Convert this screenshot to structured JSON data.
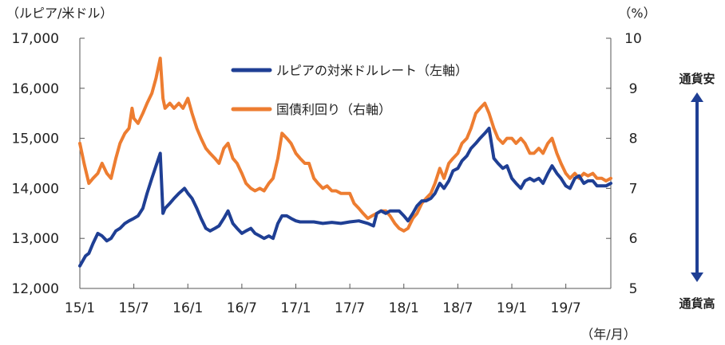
{
  "chart_data": {
    "type": "line",
    "left_axis": {
      "unit": "（ルピア/米ドル）",
      "ylim": [
        12000,
        17000
      ],
      "ticks": [
        12000,
        13000,
        14000,
        15000,
        16000,
        17000
      ],
      "tick_labels": [
        "12,000",
        "13,000",
        "14,000",
        "15,000",
        "16,000",
        "17,000"
      ]
    },
    "right_axis": {
      "unit": "（%）",
      "ylim": [
        5,
        10
      ],
      "ticks": [
        5,
        6,
        7,
        8,
        9,
        10
      ],
      "tick_labels": [
        "5",
        "6",
        "7",
        "8",
        "9",
        "10"
      ]
    },
    "x_axis": {
      "unit": "（年/月）",
      "xlim": [
        "2015-01",
        "2019-12"
      ],
      "ticks": [
        "2015-01",
        "2015-07",
        "2016-01",
        "2016-07",
        "2017-01",
        "2017-07",
        "2018-01",
        "2018-07",
        "2019-01",
        "2019-07"
      ],
      "tick_labels": [
        "15/1",
        "15/7",
        "16/1",
        "16/7",
        "17/1",
        "17/7",
        "18/1",
        "18/7",
        "19/1",
        "19/7"
      ]
    },
    "grid": false,
    "legend_position": "top-center",
    "series": [
      {
        "name": "ルピアの対米ドルレート（左軸）",
        "axis": "left",
        "color": "#1f3f94",
        "points": [
          [
            "2015-01",
            12450
          ],
          [
            "2015-01-20",
            12650
          ],
          [
            "2015-02",
            12700
          ],
          [
            "2015-02-15",
            12900
          ],
          [
            "2015-03",
            13100
          ],
          [
            "2015-03-15",
            13050
          ],
          [
            "2015-04",
            12950
          ],
          [
            "2015-04-15",
            13000
          ],
          [
            "2015-05",
            13150
          ],
          [
            "2015-05-15",
            13200
          ],
          [
            "2015-06",
            13300
          ],
          [
            "2015-06-15",
            13350
          ],
          [
            "2015-07",
            13400
          ],
          [
            "2015-07-15",
            13450
          ],
          [
            "2015-08",
            13600
          ],
          [
            "2015-08-15",
            13900
          ],
          [
            "2015-09",
            14200
          ],
          [
            "2015-09-15",
            14450
          ],
          [
            "2015-09-29",
            14700
          ],
          [
            "2015-10-08",
            13500
          ],
          [
            "2015-10-15",
            13600
          ],
          [
            "2015-11",
            13700
          ],
          [
            "2015-11-15",
            13800
          ],
          [
            "2015-12",
            13900
          ],
          [
            "2015-12-20",
            14000
          ],
          [
            "2016-01",
            13900
          ],
          [
            "2016-01-15",
            13800
          ],
          [
            "2016-02",
            13600
          ],
          [
            "2016-02-15",
            13400
          ],
          [
            "2016-03",
            13200
          ],
          [
            "2016-03-15",
            13150
          ],
          [
            "2016-04",
            13200
          ],
          [
            "2016-04-15",
            13250
          ],
          [
            "2016-05",
            13400
          ],
          [
            "2016-05-15",
            13550
          ],
          [
            "2016-06",
            13300
          ],
          [
            "2016-06-15",
            13200
          ],
          [
            "2016-07",
            13100
          ],
          [
            "2016-07-15",
            13150
          ],
          [
            "2016-08",
            13200
          ],
          [
            "2016-08-15",
            13100
          ],
          [
            "2016-09",
            13050
          ],
          [
            "2016-09-15",
            13000
          ],
          [
            "2016-10",
            13050
          ],
          [
            "2016-10-15",
            13000
          ],
          [
            "2016-11",
            13300
          ],
          [
            "2016-11-15",
            13450
          ],
          [
            "2016-12",
            13450
          ],
          [
            "2016-12-15",
            13400
          ],
          [
            "2017-01",
            13350
          ],
          [
            "2017-01-15",
            13330
          ],
          [
            "2017-02",
            13330
          ],
          [
            "2017-03",
            13330
          ],
          [
            "2017-04",
            13300
          ],
          [
            "2017-05",
            13320
          ],
          [
            "2017-06",
            13300
          ],
          [
            "2017-07",
            13330
          ],
          [
            "2017-08",
            13350
          ],
          [
            "2017-09",
            13300
          ],
          [
            "2017-09-20",
            13250
          ],
          [
            "2017-10",
            13500
          ],
          [
            "2017-10-15",
            13550
          ],
          [
            "2017-11",
            13500
          ],
          [
            "2017-11-15",
            13550
          ],
          [
            "2017-12",
            13550
          ],
          [
            "2017-12-15",
            13550
          ],
          [
            "2018-01",
            13450
          ],
          [
            "2018-01-15",
            13350
          ],
          [
            "2018-02",
            13500
          ],
          [
            "2018-02-15",
            13650
          ],
          [
            "2018-03",
            13750
          ],
          [
            "2018-03-15",
            13750
          ],
          [
            "2018-04",
            13800
          ],
          [
            "2018-04-15",
            13900
          ],
          [
            "2018-05",
            14100
          ],
          [
            "2018-05-15",
            14000
          ],
          [
            "2018-06",
            14150
          ],
          [
            "2018-06-15",
            14350
          ],
          [
            "2018-07",
            14400
          ],
          [
            "2018-07-15",
            14550
          ],
          [
            "2018-08",
            14650
          ],
          [
            "2018-08-15",
            14800
          ],
          [
            "2018-09",
            14900
          ],
          [
            "2018-09-15",
            15000
          ],
          [
            "2018-10",
            15100
          ],
          [
            "2018-10-15",
            15200
          ],
          [
            "2018-11",
            14600
          ],
          [
            "2018-11-15",
            14500
          ],
          [
            "2018-12",
            14400
          ],
          [
            "2018-12-15",
            14450
          ],
          [
            "2019-01",
            14200
          ],
          [
            "2019-01-15",
            14100
          ],
          [
            "2019-02",
            14000
          ],
          [
            "2019-02-15",
            14150
          ],
          [
            "2019-03",
            14200
          ],
          [
            "2019-03-15",
            14150
          ],
          [
            "2019-04",
            14200
          ],
          [
            "2019-04-15",
            14100
          ],
          [
            "2019-05",
            14300
          ],
          [
            "2019-05-15",
            14450
          ],
          [
            "2019-06",
            14300
          ],
          [
            "2019-06-15",
            14200
          ],
          [
            "2019-07",
            14050
          ],
          [
            "2019-07-15",
            14000
          ],
          [
            "2019-08",
            14200
          ],
          [
            "2019-08-15",
            14250
          ],
          [
            "2019-09",
            14100
          ],
          [
            "2019-09-15",
            14150
          ],
          [
            "2019-10",
            14150
          ],
          [
            "2019-10-15",
            14050
          ],
          [
            "2019-11",
            14050
          ],
          [
            "2019-11-15",
            14050
          ],
          [
            "2019-12",
            14100
          ]
        ]
      },
      {
        "name": "国債利回り（右軸）",
        "axis": "right",
        "color": "#ed7d31",
        "points": [
          [
            "2015-01",
            7.9
          ],
          [
            "2015-01-15",
            7.5
          ],
          [
            "2015-02",
            7.1
          ],
          [
            "2015-02-15",
            7.2
          ],
          [
            "2015-03",
            7.3
          ],
          [
            "2015-03-15",
            7.5
          ],
          [
            "2015-04",
            7.3
          ],
          [
            "2015-04-15",
            7.2
          ],
          [
            "2015-05",
            7.6
          ],
          [
            "2015-05-15",
            7.9
          ],
          [
            "2015-06",
            8.1
          ],
          [
            "2015-06-15",
            8.2
          ],
          [
            "2015-06-25",
            8.6
          ],
          [
            "2015-07",
            8.4
          ],
          [
            "2015-07-15",
            8.3
          ],
          [
            "2015-08",
            8.5
          ],
          [
            "2015-08-15",
            8.7
          ],
          [
            "2015-09",
            8.9
          ],
          [
            "2015-09-15",
            9.2
          ],
          [
            "2015-09-29",
            9.6
          ],
          [
            "2015-10-08",
            8.8
          ],
          [
            "2015-10-15",
            8.6
          ],
          [
            "2015-11",
            8.7
          ],
          [
            "2015-11-15",
            8.6
          ],
          [
            "2015-12",
            8.7
          ],
          [
            "2015-12-15",
            8.6
          ],
          [
            "2016-01",
            8.8
          ],
          [
            "2016-01-15",
            8.5
          ],
          [
            "2016-02",
            8.2
          ],
          [
            "2016-02-15",
            8.0
          ],
          [
            "2016-03",
            7.8
          ],
          [
            "2016-03-15",
            7.7
          ],
          [
            "2016-04",
            7.6
          ],
          [
            "2016-04-15",
            7.5
          ],
          [
            "2016-05",
            7.8
          ],
          [
            "2016-05-15",
            7.9
          ],
          [
            "2016-06",
            7.6
          ],
          [
            "2016-06-15",
            7.5
          ],
          [
            "2016-07",
            7.3
          ],
          [
            "2016-07-15",
            7.1
          ],
          [
            "2016-08",
            7.0
          ],
          [
            "2016-08-15",
            6.95
          ],
          [
            "2016-09",
            7.0
          ],
          [
            "2016-09-15",
            6.95
          ],
          [
            "2016-10",
            7.1
          ],
          [
            "2016-10-15",
            7.2
          ],
          [
            "2016-11",
            7.6
          ],
          [
            "2016-11-15",
            8.1
          ],
          [
            "2016-12",
            8.0
          ],
          [
            "2016-12-15",
            7.9
          ],
          [
            "2017-01",
            7.7
          ],
          [
            "2017-01-15",
            7.6
          ],
          [
            "2017-02",
            7.5
          ],
          [
            "2017-02-15",
            7.5
          ],
          [
            "2017-03",
            7.2
          ],
          [
            "2017-03-15",
            7.1
          ],
          [
            "2017-04",
            7.0
          ],
          [
            "2017-04-15",
            7.05
          ],
          [
            "2017-05",
            6.95
          ],
          [
            "2017-05-15",
            6.95
          ],
          [
            "2017-06",
            6.9
          ],
          [
            "2017-06-15",
            6.9
          ],
          [
            "2017-07",
            6.9
          ],
          [
            "2017-07-15",
            6.7
          ],
          [
            "2017-08",
            6.6
          ],
          [
            "2017-08-15",
            6.5
          ],
          [
            "2017-09",
            6.4
          ],
          [
            "2017-09-15",
            6.45
          ],
          [
            "2017-10",
            6.5
          ],
          [
            "2017-10-15",
            6.55
          ],
          [
            "2017-11",
            6.55
          ],
          [
            "2017-11-15",
            6.45
          ],
          [
            "2017-12",
            6.3
          ],
          [
            "2017-12-15",
            6.2
          ],
          [
            "2018-01",
            6.15
          ],
          [
            "2018-01-15",
            6.2
          ],
          [
            "2018-02",
            6.4
          ],
          [
            "2018-02-15",
            6.5
          ],
          [
            "2018-03",
            6.7
          ],
          [
            "2018-03-15",
            6.8
          ],
          [
            "2018-04",
            6.9
          ],
          [
            "2018-04-15",
            7.1
          ],
          [
            "2018-05",
            7.4
          ],
          [
            "2018-05-15",
            7.2
          ],
          [
            "2018-06",
            7.5
          ],
          [
            "2018-06-15",
            7.6
          ],
          [
            "2018-07",
            7.7
          ],
          [
            "2018-07-15",
            7.9
          ],
          [
            "2018-08",
            8.0
          ],
          [
            "2018-08-15",
            8.2
          ],
          [
            "2018-09",
            8.5
          ],
          [
            "2018-09-15",
            8.6
          ],
          [
            "2018-10",
            8.7
          ],
          [
            "2018-10-15",
            8.5
          ],
          [
            "2018-11",
            8.2
          ],
          [
            "2018-11-15",
            8.0
          ],
          [
            "2018-12",
            7.9
          ],
          [
            "2018-12-15",
            8.0
          ],
          [
            "2019-01",
            8.0
          ],
          [
            "2019-01-15",
            7.9
          ],
          [
            "2019-02",
            8.0
          ],
          [
            "2019-02-15",
            7.9
          ],
          [
            "2019-03",
            7.7
          ],
          [
            "2019-03-15",
            7.7
          ],
          [
            "2019-04",
            7.8
          ],
          [
            "2019-04-15",
            7.7
          ],
          [
            "2019-05",
            7.9
          ],
          [
            "2019-05-15",
            8.0
          ],
          [
            "2019-06",
            7.7
          ],
          [
            "2019-06-15",
            7.5
          ],
          [
            "2019-07",
            7.3
          ],
          [
            "2019-07-15",
            7.2
          ],
          [
            "2019-08",
            7.3
          ],
          [
            "2019-08-15",
            7.2
          ],
          [
            "2019-09",
            7.3
          ],
          [
            "2019-09-15",
            7.25
          ],
          [
            "2019-10",
            7.3
          ],
          [
            "2019-10-15",
            7.2
          ],
          [
            "2019-11",
            7.2
          ],
          [
            "2019-11-15",
            7.15
          ],
          [
            "2019-12",
            7.2
          ]
        ]
      }
    ],
    "side_annotations": {
      "top": "通貨安",
      "bottom": "通貨高",
      "arrow": "double-headed vertical",
      "arrow_color": "#1f3f94"
    }
  }
}
